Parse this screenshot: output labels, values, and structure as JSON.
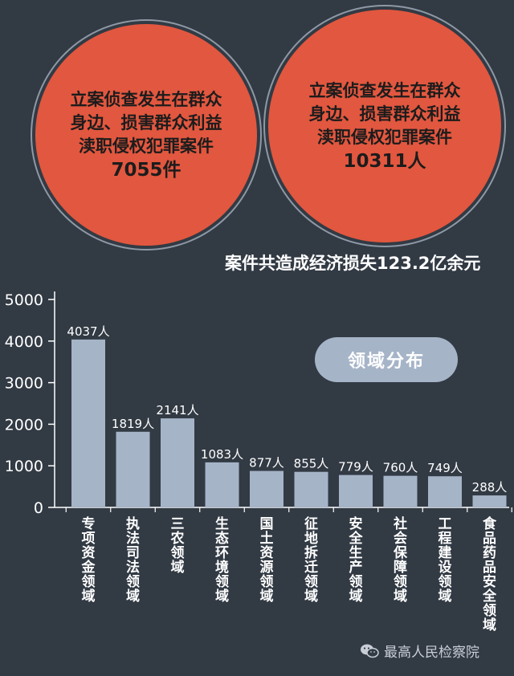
{
  "circles": {
    "left": {
      "lines": [
        "立案侦查发生在群众",
        "身边、损害群众利益",
        "渎职侵权犯罪案件"
      ],
      "count": "7055件"
    },
    "right": {
      "lines": [
        "立案侦查发生在群众",
        "身边、损害群众利益",
        "渎职侵权犯罪案件"
      ],
      "count": "10311人"
    }
  },
  "loss_text": "案件共造成经济损失123.2亿余元",
  "legend_label": "领域分布",
  "footer": {
    "source": "最高人民检察院",
    "icon": "wechat-icon"
  },
  "colors": {
    "background": "#323a44",
    "circle": "#e2573f",
    "bar": "#a6b4c8",
    "text_light": "#ffffff"
  },
  "chart_data": {
    "type": "bar",
    "title": "",
    "xlabel": "",
    "ylabel": "",
    "ylim": [
      0,
      5000
    ],
    "yticks": [
      0,
      1000,
      2000,
      3000,
      4000,
      5000
    ],
    "categories": [
      "专项资金领域",
      "执法司法领域",
      "三农领域",
      "生态环境领域",
      "国土资源领域",
      "征地拆迁领域",
      "安全生产领域",
      "社会保障领域",
      "工程建设领域",
      "食品药品安全领域"
    ],
    "values": [
      4037,
      1819,
      2141,
      1083,
      877,
      855,
      779,
      760,
      749,
      288
    ],
    "data_labels": [
      "4037人",
      "1819人",
      "2141人",
      "1083人",
      "877人",
      "855人",
      "779人",
      "760人",
      "749人",
      "288人"
    ],
    "bar_heights_note": "",
    "grid": false
  }
}
